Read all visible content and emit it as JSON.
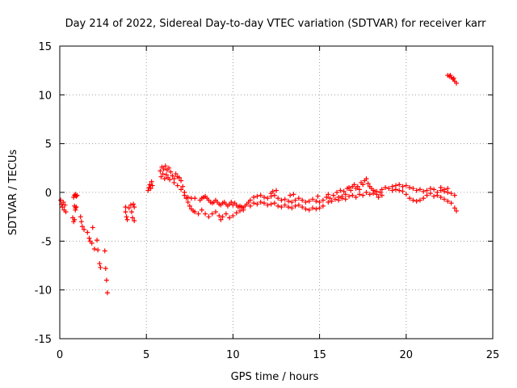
{
  "chart_data": {
    "type": "scatter",
    "title": "Day 214 of 2022, Sidereal Day-to-day VTEC variation (SDTVAR) for receiver karr",
    "xlabel": "GPS time / hours",
    "ylabel": "SDTVAR / TECUs",
    "xlim": [
      0,
      25
    ],
    "ylim": [
      -15,
      15
    ],
    "xticks": [
      0,
      5,
      10,
      15,
      20,
      25
    ],
    "yticks": [
      15,
      10,
      5,
      0,
      -5,
      -10,
      -15
    ],
    "xtick_labels": [
      "0",
      "5",
      "10",
      "15",
      "20",
      "25"
    ],
    "ytick_labels": [
      "15",
      "10",
      "5",
      "0",
      "-5",
      "-10",
      "-15"
    ],
    "grid": true,
    "marker": "+",
    "colors": {
      "series": "#ff0000",
      "grid": "#a0a0a0",
      "axis": "#000000"
    },
    "series": [
      {
        "name": "SDTVAR",
        "points": [
          [
            0.05,
            -0.8
          ],
          [
            0.1,
            -1.2
          ],
          [
            0.15,
            -1.5
          ],
          [
            0.2,
            -1.0
          ],
          [
            0.25,
            -1.8
          ],
          [
            0.3,
            -1.3
          ],
          [
            0.35,
            -2.0
          ],
          [
            0.75,
            -2.6
          ],
          [
            0.8,
            -3.0
          ],
          [
            0.85,
            -2.8
          ],
          [
            0.9,
            -1.8
          ],
          [
            0.95,
            -1.5
          ],
          [
            0.8,
            -0.5
          ],
          [
            0.85,
            -0.3
          ],
          [
            0.9,
            -0.2
          ],
          [
            0.95,
            -0.4
          ],
          [
            1.0,
            -0.3
          ],
          [
            0.85,
            -1.4
          ],
          [
            0.9,
            -1.6
          ],
          [
            1.2,
            -2.5
          ],
          [
            1.25,
            -3.0
          ],
          [
            1.3,
            -3.5
          ],
          [
            1.4,
            -3.8
          ],
          [
            1.6,
            -4.1
          ],
          [
            1.7,
            -4.7
          ],
          [
            1.75,
            -5.0
          ],
          [
            1.85,
            -5.2
          ],
          [
            1.9,
            -3.6
          ],
          [
            2.0,
            -5.8
          ],
          [
            2.15,
            -4.9
          ],
          [
            2.2,
            -5.9
          ],
          [
            2.3,
            -7.3
          ],
          [
            2.35,
            -7.7
          ],
          [
            2.6,
            -6.0
          ],
          [
            2.65,
            -7.8
          ],
          [
            2.7,
            -9.0
          ],
          [
            2.75,
            -10.3
          ],
          [
            3.8,
            -1.5
          ],
          [
            3.8,
            -2.0
          ],
          [
            3.85,
            -2.5
          ],
          [
            3.9,
            -2.8
          ],
          [
            4.0,
            -1.6
          ],
          [
            4.1,
            -1.3
          ],
          [
            4.15,
            -2.0
          ],
          [
            4.2,
            -2.6
          ],
          [
            4.25,
            -1.2
          ],
          [
            4.3,
            -1.5
          ],
          [
            4.3,
            -2.9
          ],
          [
            5.1,
            0.2
          ],
          [
            5.15,
            0.5
          ],
          [
            5.2,
            0.8
          ],
          [
            5.25,
            0.4
          ],
          [
            5.3,
            1.1
          ],
          [
            5.35,
            0.7
          ],
          [
            5.8,
            2.2
          ],
          [
            5.9,
            2.6
          ],
          [
            6.0,
            2.4
          ],
          [
            6.1,
            2.7
          ],
          [
            6.2,
            2.3
          ],
          [
            6.3,
            2.5
          ],
          [
            6.4,
            2.1
          ],
          [
            5.85,
            1.6
          ],
          [
            5.95,
            1.9
          ],
          [
            6.05,
            1.4
          ],
          [
            6.15,
            1.8
          ],
          [
            6.25,
            1.5
          ],
          [
            6.35,
            1.3
          ],
          [
            6.5,
            1.7
          ],
          [
            6.6,
            1.4
          ],
          [
            6.7,
            1.9
          ],
          [
            6.8,
            1.6
          ],
          [
            6.9,
            1.5
          ],
          [
            7.0,
            1.2
          ],
          [
            7.1,
            0.6
          ],
          [
            7.2,
            0.0
          ],
          [
            7.3,
            -0.6
          ],
          [
            7.4,
            -1.0
          ],
          [
            7.5,
            -1.4
          ],
          [
            7.6,
            -1.7
          ],
          [
            7.7,
            -1.9
          ],
          [
            7.8,
            -2.0
          ],
          [
            6.6,
            1.0
          ],
          [
            6.8,
            0.7
          ],
          [
            7.0,
            0.3
          ],
          [
            7.2,
            -0.3
          ],
          [
            7.4,
            -0.5
          ],
          [
            7.6,
            -0.6
          ],
          [
            7.8,
            -0.6
          ],
          [
            8.0,
            -2.2
          ],
          [
            8.1,
            -0.8
          ],
          [
            8.2,
            -0.6
          ],
          [
            8.3,
            -0.5
          ],
          [
            8.4,
            -0.4
          ],
          [
            8.5,
            -0.6
          ],
          [
            8.6,
            -0.8
          ],
          [
            8.7,
            -1.0
          ],
          [
            8.8,
            -1.1
          ],
          [
            8.9,
            -1.0
          ],
          [
            9.0,
            -0.8
          ],
          [
            9.1,
            -1.0
          ],
          [
            9.2,
            -1.2
          ],
          [
            9.3,
            -1.3
          ],
          [
            9.4,
            -1.1
          ],
          [
            9.5,
            -1.0
          ],
          [
            9.6,
            -1.2
          ],
          [
            9.7,
            -1.4
          ],
          [
            9.8,
            -1.2
          ],
          [
            9.9,
            -1.0
          ],
          [
            10.0,
            -1.3
          ],
          [
            10.1,
            -1.1
          ],
          [
            10.2,
            -1.3
          ],
          [
            10.3,
            -1.5
          ],
          [
            10.4,
            -1.4
          ],
          [
            10.5,
            -1.5
          ],
          [
            10.6,
            -1.6
          ],
          [
            10.7,
            -1.4
          ],
          [
            10.8,
            -1.2
          ],
          [
            10.9,
            -1.0
          ],
          [
            8.2,
            -1.8
          ],
          [
            8.4,
            -2.2
          ],
          [
            8.6,
            -2.5
          ],
          [
            8.8,
            -2.2
          ],
          [
            9.0,
            -2.0
          ],
          [
            9.2,
            -2.4
          ],
          [
            9.3,
            -2.8
          ],
          [
            9.4,
            -2.5
          ],
          [
            9.6,
            -2.2
          ],
          [
            9.8,
            -2.6
          ],
          [
            10.0,
            -2.4
          ],
          [
            10.2,
            -2.1
          ],
          [
            10.4,
            -1.9
          ],
          [
            10.6,
            -1.8
          ],
          [
            11.0,
            -0.8
          ],
          [
            11.2,
            -0.5
          ],
          [
            11.4,
            -0.4
          ],
          [
            11.6,
            -0.3
          ],
          [
            11.8,
            -0.5
          ],
          [
            12.0,
            -0.6
          ],
          [
            12.2,
            -0.4
          ],
          [
            12.4,
            -0.3
          ],
          [
            12.6,
            -0.6
          ],
          [
            12.8,
            -0.8
          ],
          [
            13.0,
            -0.7
          ],
          [
            13.2,
            -0.9
          ],
          [
            13.4,
            -1.0
          ],
          [
            13.6,
            -0.8
          ],
          [
            13.8,
            -0.6
          ],
          [
            14.0,
            -0.8
          ],
          [
            14.2,
            -1.0
          ],
          [
            14.4,
            -0.9
          ],
          [
            14.6,
            -0.7
          ],
          [
            14.8,
            -0.9
          ],
          [
            15.0,
            -1.0
          ],
          [
            15.2,
            -0.8
          ],
          [
            15.4,
            -0.5
          ],
          [
            11.0,
            -1.4
          ],
          [
            11.2,
            -1.1
          ],
          [
            11.4,
            -1.2
          ],
          [
            11.6,
            -1.0
          ],
          [
            11.8,
            -1.1
          ],
          [
            12.0,
            -1.3
          ],
          [
            12.2,
            -1.2
          ],
          [
            12.4,
            -1.1
          ],
          [
            12.6,
            -1.4
          ],
          [
            12.8,
            -1.5
          ],
          [
            13.0,
            -1.3
          ],
          [
            13.2,
            -1.5
          ],
          [
            13.4,
            -1.6
          ],
          [
            13.6,
            -1.4
          ],
          [
            13.8,
            -1.3
          ],
          [
            14.0,
            -1.5
          ],
          [
            14.2,
            -1.7
          ],
          [
            14.4,
            -1.8
          ],
          [
            14.6,
            -1.6
          ],
          [
            14.8,
            -1.7
          ],
          [
            15.0,
            -1.6
          ],
          [
            15.2,
            -1.4
          ],
          [
            12.2,
            -0.1
          ],
          [
            12.3,
            0.1
          ],
          [
            12.5,
            0.2
          ],
          [
            13.3,
            -0.3
          ],
          [
            13.5,
            -0.2
          ],
          [
            14.9,
            -0.4
          ],
          [
            15.5,
            -0.2
          ],
          [
            15.6,
            -0.6
          ],
          [
            15.8,
            -0.3
          ],
          [
            16.0,
            0.0
          ],
          [
            16.1,
            -0.5
          ],
          [
            16.2,
            0.2
          ],
          [
            16.3,
            -0.4
          ],
          [
            16.4,
            0.1
          ],
          [
            16.5,
            -0.2
          ],
          [
            16.6,
            0.4
          ],
          [
            16.7,
            0.5
          ],
          [
            16.8,
            0.2
          ],
          [
            16.9,
            0.6
          ],
          [
            17.0,
            0.8
          ],
          [
            17.1,
            0.4
          ],
          [
            17.2,
            0.6
          ],
          [
            17.3,
            0.3
          ],
          [
            17.4,
            1.0
          ],
          [
            17.5,
            0.8
          ],
          [
            17.6,
            1.2
          ],
          [
            17.7,
            1.4
          ],
          [
            17.8,
            0.9
          ],
          [
            17.9,
            0.6
          ],
          [
            18.0,
            0.4
          ],
          [
            18.1,
            0.2
          ],
          [
            18.2,
            0.1
          ],
          [
            18.3,
            -0.2
          ],
          [
            15.5,
            -1.0
          ],
          [
            15.7,
            -0.9
          ],
          [
            15.9,
            -0.7
          ],
          [
            16.1,
            -0.8
          ],
          [
            16.3,
            -0.6
          ],
          [
            16.5,
            -0.7
          ],
          [
            16.7,
            -0.4
          ],
          [
            16.9,
            -0.3
          ],
          [
            17.1,
            -0.5
          ],
          [
            17.3,
            -0.2
          ],
          [
            17.5,
            -0.3
          ],
          [
            17.7,
            0.0
          ],
          [
            17.9,
            -0.2
          ],
          [
            18.1,
            -0.1
          ],
          [
            18.3,
            0.1
          ],
          [
            18.5,
            0.0
          ],
          [
            18.4,
            -0.5
          ],
          [
            18.6,
            -0.3
          ],
          [
            18.6,
            0.3
          ],
          [
            18.8,
            0.5
          ],
          [
            19.0,
            0.4
          ],
          [
            19.2,
            0.6
          ],
          [
            19.4,
            0.7
          ],
          [
            19.6,
            0.8
          ],
          [
            19.8,
            0.6
          ],
          [
            20.0,
            0.7
          ],
          [
            20.2,
            0.5
          ],
          [
            20.4,
            0.4
          ],
          [
            20.6,
            0.2
          ],
          [
            20.8,
            0.3
          ],
          [
            21.0,
            0.1
          ],
          [
            21.2,
            0.2
          ],
          [
            21.4,
            0.4
          ],
          [
            21.6,
            0.3
          ],
          [
            21.8,
            0.0
          ],
          [
            22.0,
            0.2
          ],
          [
            22.2,
            0.1
          ],
          [
            22.4,
            0.0
          ],
          [
            22.6,
            -0.1
          ],
          [
            22.8,
            -0.3
          ],
          [
            19.2,
            0.2
          ],
          [
            19.4,
            0.3
          ],
          [
            19.6,
            0.2
          ],
          [
            19.8,
            0.1
          ],
          [
            20.0,
            -0.2
          ],
          [
            20.2,
            -0.6
          ],
          [
            20.4,
            -0.8
          ],
          [
            20.6,
            -0.9
          ],
          [
            20.8,
            -0.8
          ],
          [
            21.0,
            -0.6
          ],
          [
            21.2,
            -0.3
          ],
          [
            21.4,
            -0.1
          ],
          [
            21.6,
            -0.4
          ],
          [
            21.8,
            -0.3
          ],
          [
            22.0,
            -0.5
          ],
          [
            22.2,
            -0.7
          ],
          [
            22.4,
            -0.9
          ],
          [
            22.6,
            -1.1
          ],
          [
            22.8,
            -1.6
          ],
          [
            22.9,
            -1.9
          ],
          [
            22.0,
            0.5
          ],
          [
            22.2,
            0.3
          ],
          [
            22.4,
            0.4
          ],
          [
            22.4,
            12.0
          ],
          [
            22.5,
            11.9
          ],
          [
            22.6,
            11.8
          ],
          [
            22.7,
            11.6
          ],
          [
            22.8,
            11.4
          ],
          [
            22.9,
            11.2
          ],
          [
            22.55,
            12.0
          ],
          [
            22.75,
            11.7
          ]
        ]
      }
    ]
  }
}
